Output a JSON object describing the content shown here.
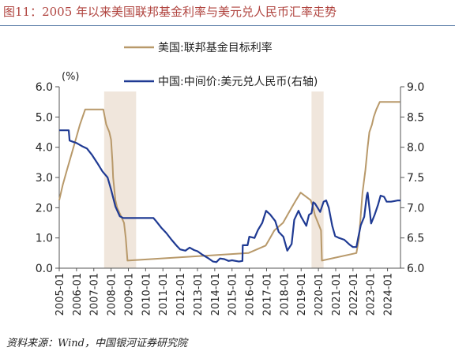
{
  "figure": {
    "title": "图11：2005 年以来美国联邦基金利率与美元兑人民币汇率走势",
    "source": "资料来源：Wind，中国银河证券研究院"
  },
  "colors": {
    "us": "#b8996a",
    "cn": "#1f3a93",
    "shade": "#f0e6dc",
    "axis": "#555555"
  },
  "chart_data": {
    "type": "line",
    "left_unit": "(%)",
    "ylim_left": [
      0,
      6
    ],
    "ylim_right": [
      6,
      9
    ],
    "yticks_left": [
      "0.0",
      "1.0",
      "2.0",
      "3.0",
      "4.0",
      "5.0",
      "6.0"
    ],
    "yticks_right": [
      "6.0",
      "6.5",
      "7.0",
      "7.5",
      "8.0",
      "8.5",
      "9.0"
    ],
    "x_range": [
      2005.0,
      2024.75
    ],
    "xtick_labels": [
      "2005-01",
      "2006-01",
      "2007-01",
      "2008-01",
      "2009-01",
      "2010-01",
      "2011-01",
      "2012-01",
      "2013-01",
      "2014-01",
      "2015-01",
      "2016-01",
      "2017-01",
      "2018-01",
      "2019-01",
      "2020-01",
      "2021-01",
      "2022-01",
      "2023-01",
      "2024-01"
    ],
    "xtick_values": [
      2005,
      2006,
      2007,
      2008,
      2009,
      2010,
      2011,
      2012,
      2013,
      2014,
      2015,
      2016,
      2017,
      2018,
      2019,
      2020,
      2021,
      2022,
      2023,
      2024
    ],
    "shaded_periods": [
      [
        2007.6,
        2009.45
      ],
      [
        2019.6,
        2020.3
      ]
    ],
    "series": [
      {
        "name": "美国:联邦基金目标利率",
        "axis": "left",
        "points": [
          [
            2005.0,
            2.25
          ],
          [
            2005.2,
            2.75
          ],
          [
            2005.45,
            3.25
          ],
          [
            2005.7,
            3.75
          ],
          [
            2005.95,
            4.25
          ],
          [
            2006.2,
            4.75
          ],
          [
            2006.5,
            5.25
          ],
          [
            2007.55,
            5.25
          ],
          [
            2007.72,
            4.75
          ],
          [
            2007.9,
            4.5
          ],
          [
            2008.0,
            4.25
          ],
          [
            2008.08,
            3.5
          ],
          [
            2008.12,
            3.0
          ],
          [
            2008.25,
            2.25
          ],
          [
            2008.35,
            2.0
          ],
          [
            2008.75,
            1.5
          ],
          [
            2008.85,
            1.0
          ],
          [
            2008.95,
            0.25
          ],
          [
            2015.95,
            0.5
          ],
          [
            2016.95,
            0.75
          ],
          [
            2017.2,
            1.0
          ],
          [
            2017.45,
            1.25
          ],
          [
            2017.95,
            1.5
          ],
          [
            2018.2,
            1.75
          ],
          [
            2018.45,
            2.0
          ],
          [
            2018.7,
            2.25
          ],
          [
            2018.97,
            2.5
          ],
          [
            2019.55,
            2.25
          ],
          [
            2019.7,
            2.0
          ],
          [
            2019.8,
            1.75
          ],
          [
            2020.15,
            1.25
          ],
          [
            2020.2,
            0.25
          ],
          [
            2022.2,
            0.5
          ],
          [
            2022.35,
            1.0
          ],
          [
            2022.45,
            1.75
          ],
          [
            2022.55,
            2.5
          ],
          [
            2022.72,
            3.25
          ],
          [
            2022.85,
            4.0
          ],
          [
            2022.95,
            4.5
          ],
          [
            2023.1,
            4.75
          ],
          [
            2023.2,
            5.0
          ],
          [
            2023.35,
            5.25
          ],
          [
            2023.55,
            5.5
          ],
          [
            2024.72,
            5.5
          ]
        ]
      },
      {
        "name": "中国:中间价:美元兑人民币(右轴)",
        "axis": "right",
        "points": [
          [
            2005.0,
            8.28
          ],
          [
            2005.55,
            8.28
          ],
          [
            2005.6,
            8.11
          ],
          [
            2005.8,
            8.09
          ],
          [
            2006.0,
            8.07
          ],
          [
            2006.3,
            8.02
          ],
          [
            2006.6,
            7.98
          ],
          [
            2006.9,
            7.87
          ],
          [
            2007.2,
            7.74
          ],
          [
            2007.5,
            7.6
          ],
          [
            2007.8,
            7.5
          ],
          [
            2008.0,
            7.3
          ],
          [
            2008.25,
            7.02
          ],
          [
            2008.5,
            6.86
          ],
          [
            2008.7,
            6.83
          ],
          [
            2009.0,
            6.83
          ],
          [
            2009.5,
            6.83
          ],
          [
            2010.0,
            6.83
          ],
          [
            2010.45,
            6.83
          ],
          [
            2010.6,
            6.78
          ],
          [
            2010.9,
            6.67
          ],
          [
            2011.2,
            6.58
          ],
          [
            2011.5,
            6.47
          ],
          [
            2011.8,
            6.37
          ],
          [
            2012.0,
            6.31
          ],
          [
            2012.3,
            6.29
          ],
          [
            2012.55,
            6.34
          ],
          [
            2012.8,
            6.3
          ],
          [
            2013.0,
            6.28
          ],
          [
            2013.3,
            6.22
          ],
          [
            2013.6,
            6.17
          ],
          [
            2013.9,
            6.11
          ],
          [
            2014.1,
            6.1
          ],
          [
            2014.3,
            6.16
          ],
          [
            2014.55,
            6.15
          ],
          [
            2014.8,
            6.12
          ],
          [
            2015.0,
            6.13
          ],
          [
            2015.4,
            6.11
          ],
          [
            2015.6,
            6.12
          ],
          [
            2015.62,
            6.38
          ],
          [
            2015.9,
            6.38
          ],
          [
            2016.0,
            6.52
          ],
          [
            2016.3,
            6.5
          ],
          [
            2016.5,
            6.63
          ],
          [
            2016.75,
            6.75
          ],
          [
            2016.97,
            6.95
          ],
          [
            2017.2,
            6.89
          ],
          [
            2017.5,
            6.78
          ],
          [
            2017.7,
            6.6
          ],
          [
            2017.97,
            6.52
          ],
          [
            2018.2,
            6.29
          ],
          [
            2018.45,
            6.4
          ],
          [
            2018.6,
            6.8
          ],
          [
            2018.85,
            6.95
          ],
          [
            2019.0,
            6.85
          ],
          [
            2019.3,
            6.7
          ],
          [
            2019.45,
            6.88
          ],
          [
            2019.6,
            6.91
          ],
          [
            2019.7,
            7.09
          ],
          [
            2019.8,
            7.07
          ],
          [
            2019.95,
            7.0
          ],
          [
            2020.1,
            6.93
          ],
          [
            2020.3,
            7.1
          ],
          [
            2020.45,
            7.12
          ],
          [
            2020.6,
            7.0
          ],
          [
            2020.8,
            6.7
          ],
          [
            2020.97,
            6.53
          ],
          [
            2021.2,
            6.5
          ],
          [
            2021.5,
            6.47
          ],
          [
            2021.8,
            6.39
          ],
          [
            2022.0,
            6.35
          ],
          [
            2022.2,
            6.35
          ],
          [
            2022.3,
            6.5
          ],
          [
            2022.45,
            6.71
          ],
          [
            2022.65,
            6.85
          ],
          [
            2022.8,
            7.2
          ],
          [
            2022.85,
            7.25
          ],
          [
            2022.95,
            7.0
          ],
          [
            2023.05,
            6.74
          ],
          [
            2023.25,
            6.88
          ],
          [
            2023.45,
            7.05
          ],
          [
            2023.6,
            7.2
          ],
          [
            2023.8,
            7.18
          ],
          [
            2023.95,
            7.1
          ],
          [
            2024.2,
            7.1
          ],
          [
            2024.4,
            7.11
          ],
          [
            2024.6,
            7.12
          ],
          [
            2024.75,
            7.12
          ]
        ]
      }
    ]
  }
}
